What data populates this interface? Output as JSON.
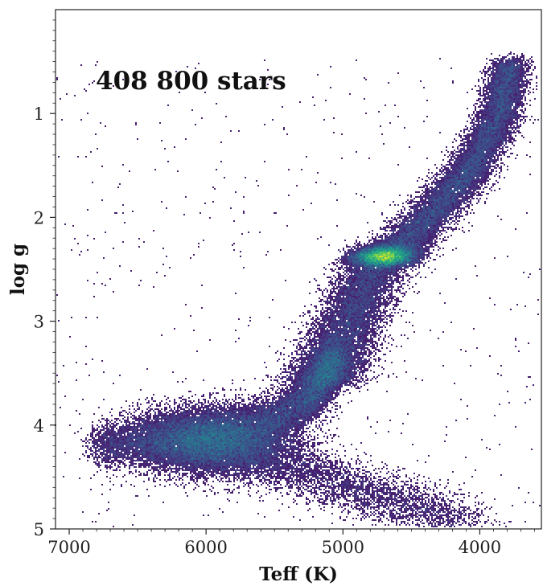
{
  "chart_data": {
    "type": "heatmap",
    "title": "",
    "xlabel": "Teff (K)",
    "ylabel": "log g",
    "xlim": [
      7100,
      3550
    ],
    "ylim": [
      5.0,
      0.0
    ],
    "x_inverted": true,
    "y_inverted": true,
    "colormap": "viridis",
    "x_ticks": [
      7000,
      6000,
      5000,
      4000
    ],
    "x_tick_labels": [
      "7000",
      "6000",
      "5000",
      "4000"
    ],
    "y_ticks": [
      1,
      2,
      3,
      4,
      5
    ],
    "y_tick_labels": [
      "1",
      "2",
      "3",
      "4",
      "5"
    ],
    "annotation": "408 800 stars",
    "density_ridge": {
      "description_points_teff_logg": [
        [
          3780,
          0.5
        ],
        [
          3850,
          1.0
        ],
        [
          4050,
          1.5
        ],
        [
          4300,
          1.9
        ],
        [
          4600,
          2.3
        ],
        [
          4750,
          2.4
        ],
        [
          4900,
          2.85
        ],
        [
          5050,
          3.3
        ],
        [
          5150,
          3.6
        ],
        [
          5300,
          3.8
        ],
        [
          5600,
          4.0
        ],
        [
          6200,
          4.15
        ],
        [
          6800,
          4.2
        ]
      ],
      "peak_teff": 4700,
      "peak_logg": 2.38
    }
  }
}
